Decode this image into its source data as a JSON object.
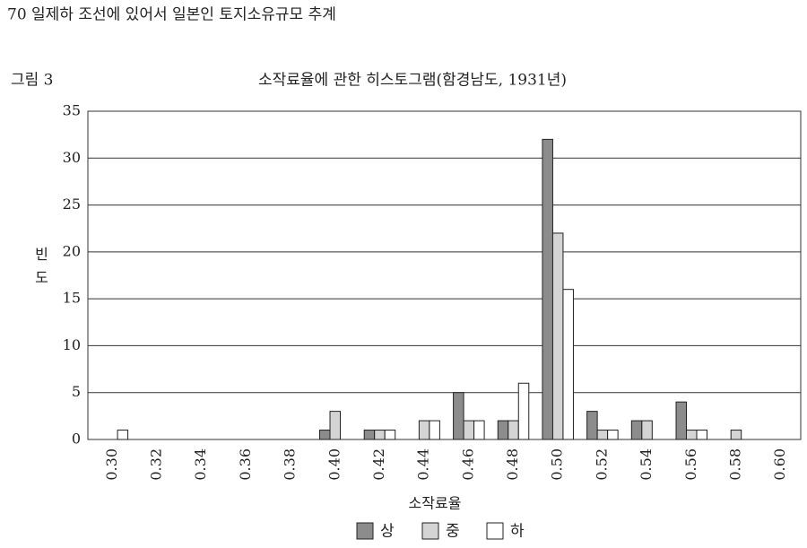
{
  "page_header": "70 일제하 조선에 있어서 일본인 토지소유규모 추계",
  "figure_label": "그림 3",
  "chart_data": {
    "type": "bar",
    "title": "소작료율에 관한 히스토그램(함경남도, 1931년)",
    "x_label": "소작료율",
    "y_label": "빈도",
    "categories": [
      "0.30",
      "0.32",
      "0.34",
      "0.36",
      "0.38",
      "0.40",
      "0.42",
      "0.44",
      "0.46",
      "0.48",
      "0.50",
      "0.52",
      "0.54",
      "0.56",
      "0.58",
      "0.60"
    ],
    "series": [
      {
        "name": "상",
        "color": "#8c8c8c",
        "values": [
          0,
          0,
          0,
          0,
          0,
          1,
          1,
          0,
          5,
          2,
          32,
          3,
          2,
          4,
          0,
          0
        ]
      },
      {
        "name": "중",
        "color": "#d4d4d4",
        "values": [
          0,
          0,
          0,
          0,
          0,
          3,
          1,
          2,
          2,
          2,
          22,
          1,
          2,
          1,
          1,
          0
        ]
      },
      {
        "name": "하",
        "color": "#ffffff",
        "values": [
          1,
          0,
          0,
          0,
          0,
          0,
          1,
          2,
          2,
          6,
          16,
          1,
          0,
          1,
          0,
          0
        ]
      }
    ],
    "ylim": [
      0,
      35
    ],
    "yticks": [
      0,
      5,
      10,
      15,
      20,
      25,
      30,
      35
    ],
    "grid": true
  }
}
